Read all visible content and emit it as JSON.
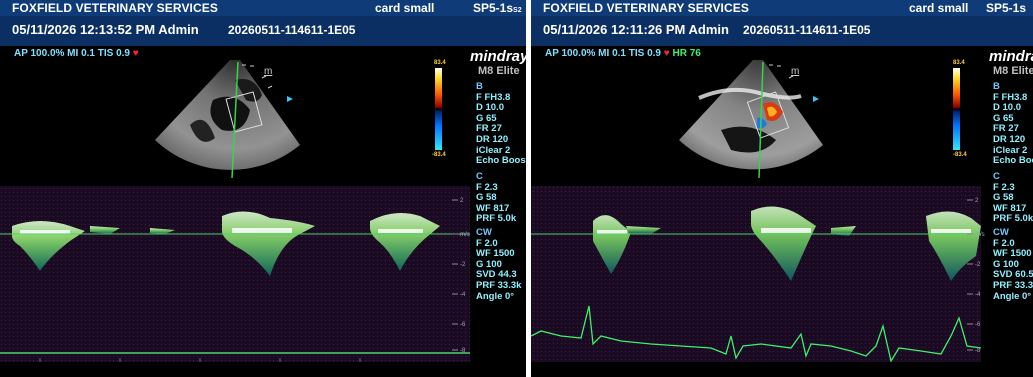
{
  "panel_left": {
    "clinic": "FOXFIELD VETERINARY SERVICES",
    "preset": "card small",
    "probe": "SP5-1s",
    "probe_suffix": "S2",
    "datetime": "05/11/2026 12:13:52 PM Admin",
    "exam_id": "20260511-114611-1E05",
    "acoustic": "AP 100.0%  MI 0.1  TIS 0.9",
    "heart_icon": "heart-icon",
    "brand": "mindray",
    "model": "M8 Elite",
    "scale_max": "83.4",
    "scale_min": "-83.4",
    "b_mode": [
      "B",
      "F FH3.8",
      "D 10.0",
      "G 65",
      "FR 27",
      "DR 120",
      "iClear 2",
      "Echo Boost"
    ],
    "c_mode": [
      "C",
      "F 2.3",
      "G 58",
      "WF 817",
      "PRF 5.0k"
    ],
    "cw_mode": [
      "CW",
      "F 2.0",
      "WF 1500",
      "G 100",
      "SVD 44.3",
      "PRF 33.3k",
      "Angle 0°"
    ]
  },
  "panel_right": {
    "clinic": "FOXFIELD VETERINARY SERVICES",
    "preset": "card small",
    "probe": "SP5-1s",
    "datetime": "05/11/2026 12:11:26 PM Admin",
    "exam_id": "20260511-114611-1E05",
    "acoustic": "AP 100.0%  MI 0.1  TIS 0.9",
    "heart_rate": "HR 76",
    "heart_icon": "heart-icon",
    "brand": "mindray",
    "model": "M8 Elite",
    "scale_max": "83.4",
    "scale_min": "-83.4",
    "b_mode": [
      "B",
      "F FH3.8",
      "D 10.0",
      "G 65",
      "FR 27",
      "DR 120",
      "iClear 2",
      "Echo Boost"
    ],
    "c_mode": [
      "C",
      "F 2.3",
      "G 58",
      "WF 817",
      "PRF 5.0k"
    ],
    "cw_mode": [
      "CW",
      "F 2.0",
      "WF 1500",
      "G 100",
      "SVD 60.5",
      "PRF 33.3k",
      "Angle 0°"
    ]
  },
  "velocity_scale": {
    "ticks": [
      "2",
      "m/s",
      "-2",
      "-4",
      "-6",
      "-8"
    ]
  },
  "colors": {
    "header_bar": "#0f3b78",
    "parameter_text": "#8ff0ff",
    "ecg_trace": "#3ef06a",
    "baseline": "#4fd36a"
  }
}
